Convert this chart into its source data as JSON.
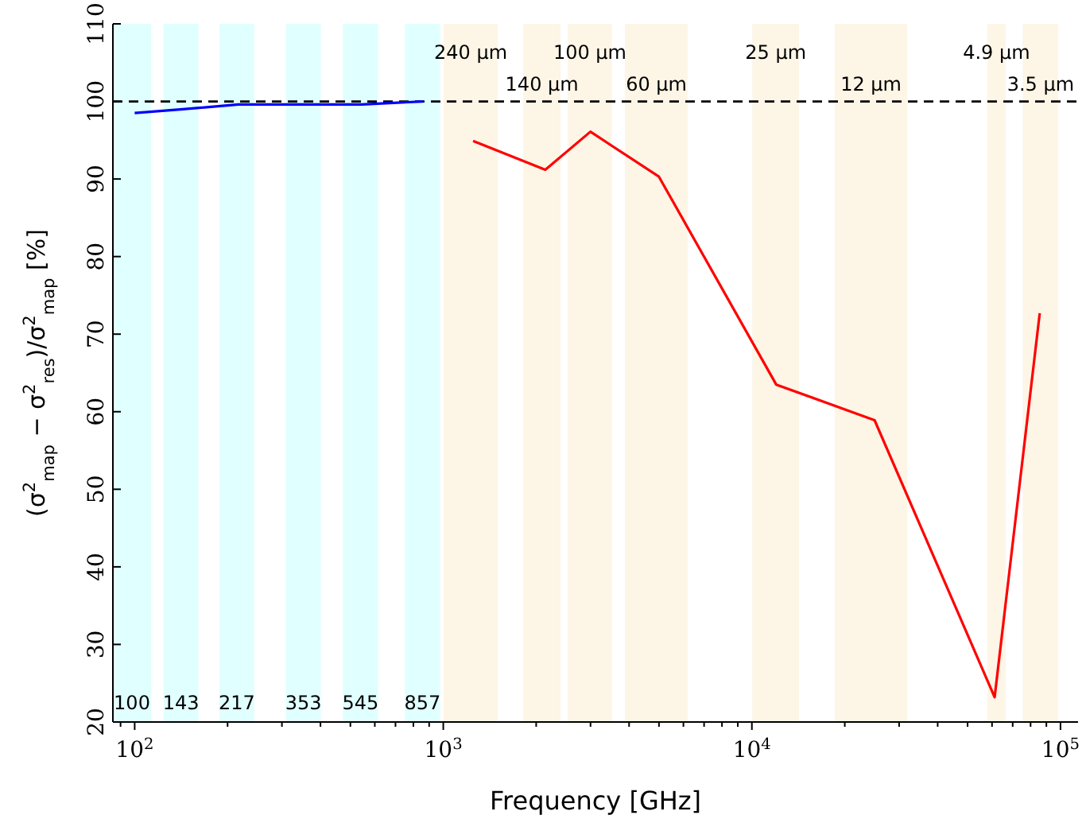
{
  "chart_data": {
    "type": "line",
    "xlabel": "Frequency [GHz]",
    "ylabel": "(σ$^{2}$$_{map}$ − σ$^{2}$$_{res}$)/σ$^{2}$$_{map}$ [%]",
    "log": "x",
    "marker": "none",
    "line_style": "solid",
    "xlim": [
      85,
      114000
    ],
    "ylim": [
      20,
      110
    ],
    "yticks": [
      20,
      30,
      40,
      50,
      60,
      70,
      80,
      90,
      100,
      110
    ],
    "xticks": [
      {
        "value": 90,
        "label": null
      },
      {
        "value": 100,
        "label": "10$^{2}$"
      },
      {
        "value": 200,
        "label": null
      },
      {
        "value": 300,
        "label": null
      },
      {
        "value": 400,
        "label": null
      },
      {
        "value": 500,
        "label": null
      },
      {
        "value": 600,
        "label": null
      },
      {
        "value": 700,
        "label": null
      },
      {
        "value": 800,
        "label": null
      },
      {
        "value": 900,
        "label": null
      },
      {
        "value": 1000,
        "label": "10$^{3}$"
      },
      {
        "value": 2000,
        "label": null
      },
      {
        "value": 3000,
        "label": null
      },
      {
        "value": 4000,
        "label": null
      },
      {
        "value": 5000,
        "label": null
      },
      {
        "value": 6000,
        "label": null
      },
      {
        "value": 7000,
        "label": null
      },
      {
        "value": 8000,
        "label": null
      },
      {
        "value": 9000,
        "label": null
      },
      {
        "value": 10000,
        "label": "10$^{4}$"
      },
      {
        "value": 20000,
        "label": null
      },
      {
        "value": 30000,
        "label": null
      },
      {
        "value": 40000,
        "label": null
      },
      {
        "value": 50000,
        "label": null
      },
      {
        "value": 60000,
        "label": null
      },
      {
        "value": 70000,
        "label": null
      },
      {
        "value": 80000,
        "label": null
      },
      {
        "value": 90000,
        "label": null
      },
      {
        "value": 100000,
        "label": "10$^{5}$"
      }
    ],
    "series": [
      {
        "color": "#0000ff",
        "x": [
          100,
          143,
          217,
          353,
          545,
          857
        ],
        "values": [
          98.5,
          99.0,
          99.6,
          99.6,
          99.6,
          100.0
        ]
      },
      {
        "color": "#ff0000",
        "x": [
          1249,
          2141,
          2998,
          4997,
          11992,
          24983,
          61182,
          85655
        ],
        "values": [
          94.9,
          91.2,
          96.1,
          90.3,
          63.5,
          58.9,
          23.2,
          72.7
        ]
      }
    ],
    "ref_lines": [
      {
        "axis": "y",
        "value": 100,
        "color": "#000000",
        "line_style": "dashed"
      }
    ],
    "bands": [
      {
        "axis": "x",
        "from": 85,
        "to": 113,
        "label": "100",
        "color": "#e0ffff"
      },
      {
        "axis": "x",
        "from": 124,
        "to": 161,
        "label": "143",
        "color": "#e0ffff"
      },
      {
        "axis": "x",
        "from": 188,
        "to": 244,
        "label": "217",
        "color": "#e0ffff"
      },
      {
        "axis": "x",
        "from": 309,
        "to": 401,
        "label": "353",
        "color": "#e0ffff"
      },
      {
        "axis": "x",
        "from": 473,
        "to": 615,
        "label": "545",
        "color": "#e0ffff"
      },
      {
        "axis": "x",
        "from": 751,
        "to": 977,
        "label": "857",
        "color": "#e0ffff"
      },
      {
        "axis": "x",
        "from": 1003,
        "to": 1502,
        "label": "240 μm",
        "color": "#fdf5e6"
      },
      {
        "axis": "x",
        "from": 1817,
        "to": 2399,
        "label": "140 μm",
        "color": "#fdf5e6"
      },
      {
        "axis": "x",
        "from": 2533,
        "to": 3518,
        "label": "100 μm",
        "color": "#fdf5e6"
      },
      {
        "axis": "x",
        "from": 3881,
        "to": 6194,
        "label": "60 μm",
        "color": "#fdf5e6"
      },
      {
        "axis": "x",
        "from": 10035,
        "to": 14220,
        "label": "25 μm",
        "color": "#fdf5e6"
      },
      {
        "axis": "x",
        "from": 18540,
        "to": 31900,
        "label": "12 μm",
        "color": "#fdf5e6"
      },
      {
        "axis": "x",
        "from": 57900,
        "to": 66500,
        "label": "4.9 μm",
        "color": "#fdf5e6"
      },
      {
        "axis": "x",
        "from": 75500,
        "to": 98400,
        "label": "3.5 μm",
        "color": "#fdf5e6"
      }
    ]
  }
}
